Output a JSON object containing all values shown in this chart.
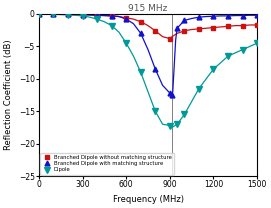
{
  "title": "915 MHz",
  "xlabel": "Frequency (MHz)",
  "ylabel": "Reflection Coefficient (dB)",
  "xlim": [
    0,
    1500
  ],
  "ylim": [
    -25,
    0
  ],
  "yticks": [
    0,
    -5,
    -10,
    -15,
    -20,
    -25
  ],
  "xticks": [
    0,
    300,
    600,
    900,
    1200,
    1500
  ],
  "vline_x": 915,
  "vline_color": "#808080",
  "legend": [
    "Branched Dipole without matching structure",
    "Branched Dipole with matching structure",
    "Dipole"
  ],
  "line_colors": [
    "#cc1111",
    "#1111cc",
    "#009999"
  ],
  "line_markers": [
    "s",
    "^",
    "v"
  ],
  "branched_no_match_freq": [
    0,
    50,
    100,
    150,
    200,
    250,
    300,
    350,
    400,
    450,
    500,
    550,
    600,
    650,
    700,
    750,
    800,
    850,
    900,
    915,
    950,
    1000,
    1050,
    1100,
    1150,
    1200,
    1250,
    1300,
    1350,
    1400,
    1450,
    1500
  ],
  "branched_no_match_rc": [
    0,
    0,
    0,
    -0.05,
    -0.05,
    -0.1,
    -0.1,
    -0.15,
    -0.2,
    -0.25,
    -0.3,
    -0.4,
    -0.6,
    -0.8,
    -1.2,
    -1.8,
    -2.6,
    -3.5,
    -3.8,
    -3.5,
    -3.0,
    -2.6,
    -2.4,
    -2.3,
    -2.2,
    -2.1,
    -2.0,
    -1.9,
    -1.8,
    -1.8,
    -1.7,
    -1.7
  ],
  "branched_no_match_marker_freq": [
    0,
    100,
    200,
    300,
    400,
    500,
    600,
    700,
    800,
    900,
    1000,
    1100,
    1200,
    1300,
    1400,
    1500
  ],
  "branched_no_match_marker_rc": [
    0,
    0,
    -0.05,
    -0.1,
    -0.2,
    -0.3,
    -0.6,
    -1.2,
    -2.6,
    -3.8,
    -2.6,
    -2.3,
    -2.1,
    -1.9,
    -1.8,
    -1.7
  ],
  "branched_match_freq": [
    0,
    50,
    100,
    150,
    200,
    250,
    300,
    350,
    400,
    450,
    500,
    550,
    600,
    650,
    700,
    750,
    800,
    850,
    900,
    910,
    915,
    920,
    930,
    940,
    950,
    1000,
    1050,
    1100,
    1150,
    1200,
    1250,
    1300,
    1350,
    1400,
    1450,
    1500
  ],
  "branched_match_rc": [
    0,
    0,
    0,
    -0.05,
    -0.05,
    -0.1,
    -0.1,
    -0.15,
    -0.2,
    -0.25,
    -0.3,
    -0.4,
    -0.8,
    -1.5,
    -3.0,
    -5.5,
    -8.5,
    -11.0,
    -12.2,
    -12.5,
    -12.5,
    -12.0,
    -8.0,
    -4.0,
    -2.2,
    -1.0,
    -0.7,
    -0.5,
    -0.4,
    -0.35,
    -0.3,
    -0.3,
    -0.25,
    -0.25,
    -0.2,
    -0.2
  ],
  "branched_match_marker_freq": [
    0,
    100,
    200,
    300,
    400,
    500,
    600,
    700,
    800,
    900,
    915,
    950,
    1000,
    1100,
    1200,
    1300,
    1400,
    1500
  ],
  "branched_match_marker_rc": [
    0,
    0,
    -0.05,
    -0.1,
    -0.2,
    -0.3,
    -0.8,
    -3.0,
    -8.5,
    -12.2,
    -12.5,
    -2.2,
    -1.0,
    -0.5,
    -0.35,
    -0.3,
    -0.25,
    -0.2
  ],
  "dipole_freq": [
    0,
    50,
    100,
    150,
    200,
    250,
    300,
    350,
    400,
    450,
    500,
    550,
    600,
    650,
    700,
    750,
    800,
    850,
    900,
    915,
    950,
    1000,
    1050,
    1100,
    1150,
    1200,
    1250,
    1300,
    1350,
    1400,
    1450,
    1500
  ],
  "dipole_rc": [
    0,
    0,
    -0.05,
    -0.1,
    -0.15,
    -0.2,
    -0.3,
    -0.5,
    -0.8,
    -1.2,
    -1.8,
    -2.8,
    -4.5,
    -6.5,
    -9.0,
    -12.0,
    -15.0,
    -17.0,
    -17.2,
    -17.5,
    -17.0,
    -15.5,
    -13.5,
    -11.5,
    -10.0,
    -8.5,
    -7.5,
    -6.5,
    -6.0,
    -5.5,
    -5.0,
    -4.5
  ],
  "dipole_marker_freq": [
    0,
    100,
    200,
    300,
    400,
    500,
    600,
    700,
    800,
    900,
    950,
    1000,
    1100,
    1200,
    1300,
    1400,
    1500
  ],
  "dipole_marker_rc": [
    0,
    -0.05,
    -0.15,
    -0.3,
    -0.8,
    -1.8,
    -4.5,
    -9.0,
    -15.0,
    -17.2,
    -17.0,
    -15.5,
    -11.5,
    -8.5,
    -6.5,
    -5.5,
    -4.5
  ]
}
